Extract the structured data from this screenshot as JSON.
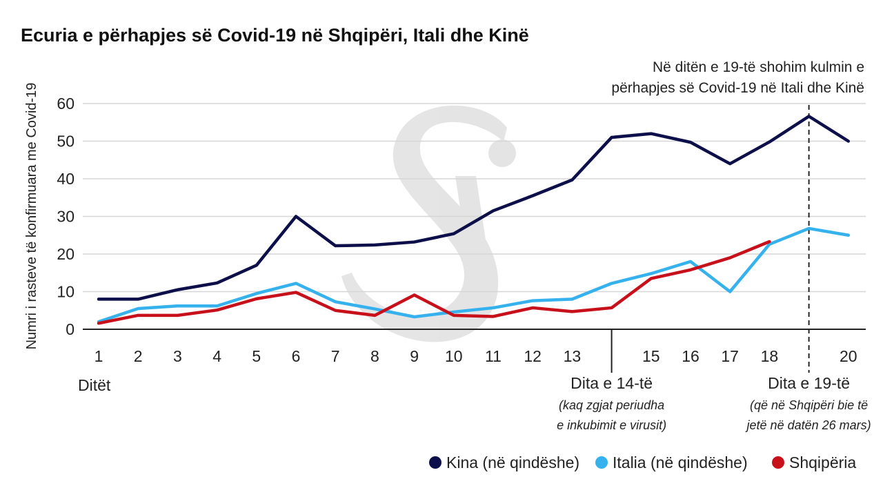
{
  "chart_data": {
    "type": "line",
    "title": "Ecuria e përhapjes së Covid-19 në Shqipëri, Itali dhe Kinë",
    "ylabel": "Numri i rasteve të konfirmuara me Covid-19",
    "xlabel": "Ditët",
    "x": [
      1,
      2,
      3,
      4,
      5,
      6,
      7,
      8,
      9,
      10,
      11,
      12,
      13,
      14,
      15,
      16,
      17,
      18,
      19,
      20
    ],
    "x_tick_labels": [
      "1",
      "2",
      "3",
      "4",
      "5",
      "6",
      "7",
      "8",
      "9",
      "10",
      "11",
      "12",
      "13",
      "",
      "15",
      "16",
      "17",
      "18",
      "",
      "20"
    ],
    "ylim": [
      0,
      60
    ],
    "y_ticks": [
      0,
      10,
      20,
      30,
      40,
      50,
      60
    ],
    "grid": "horizontal",
    "legend_position": "bottom-right",
    "series": [
      {
        "name": "Kina (në qindëshe)",
        "color": "#0d0f4a",
        "x": [
          1,
          2,
          3,
          4,
          5,
          6,
          7,
          8,
          9,
          10,
          11,
          12,
          13,
          14,
          15,
          16,
          17,
          18,
          19,
          20
        ],
        "values": [
          8,
          8,
          10.5,
          12.3,
          17,
          30,
          22.2,
          22.4,
          23.2,
          25.4,
          31.5,
          35.5,
          39.7,
          51,
          52,
          49.7,
          44,
          49.8,
          56.6,
          50
        ]
      },
      {
        "name": "Italia (në qindëshe)",
        "color": "#35b2ee",
        "x": [
          1,
          2,
          3,
          4,
          5,
          6,
          7,
          8,
          9,
          10,
          11,
          12,
          13,
          14,
          15,
          16,
          17,
          18,
          19,
          20
        ],
        "values": [
          2,
          5.5,
          6.2,
          6.2,
          9.5,
          12.2,
          7.3,
          5.4,
          3.3,
          4.6,
          5.7,
          7.6,
          8,
          12.2,
          14.8,
          18,
          10,
          22.6,
          26.8,
          25
        ]
      },
      {
        "name": "Shqipëria",
        "color": "#c8101b",
        "x": [
          1,
          2,
          3,
          4,
          5,
          6,
          7,
          8,
          9,
          10,
          11,
          12,
          13,
          14,
          15,
          16,
          17,
          18
        ],
        "values": [
          1.6,
          3.7,
          3.7,
          5.1,
          8.1,
          9.8,
          5,
          3.7,
          9.1,
          3.7,
          3.4,
          5.7,
          4.7,
          5.7,
          13.5,
          15.8,
          19,
          23.3
        ]
      }
    ],
    "markers": [
      {
        "x": 14,
        "label": "Dita e 14-të",
        "note_lines": [
          "(kaq zgjat periudha",
          "e inkubimit e virusit)"
        ],
        "line": "solid-short"
      },
      {
        "x": 19,
        "label": "Dita e 19-të",
        "note_lines": [
          "(që në Shqipëri bie të",
          "jetë në datën 26 mars)"
        ],
        "line": "dashed-full"
      }
    ],
    "top_annotation_lines": [
      "Në ditën e 19-të shohim kulmin e",
      "përhapjes së Covid-19 në Itali dhe Kinë"
    ],
    "watermark": "Si"
  }
}
